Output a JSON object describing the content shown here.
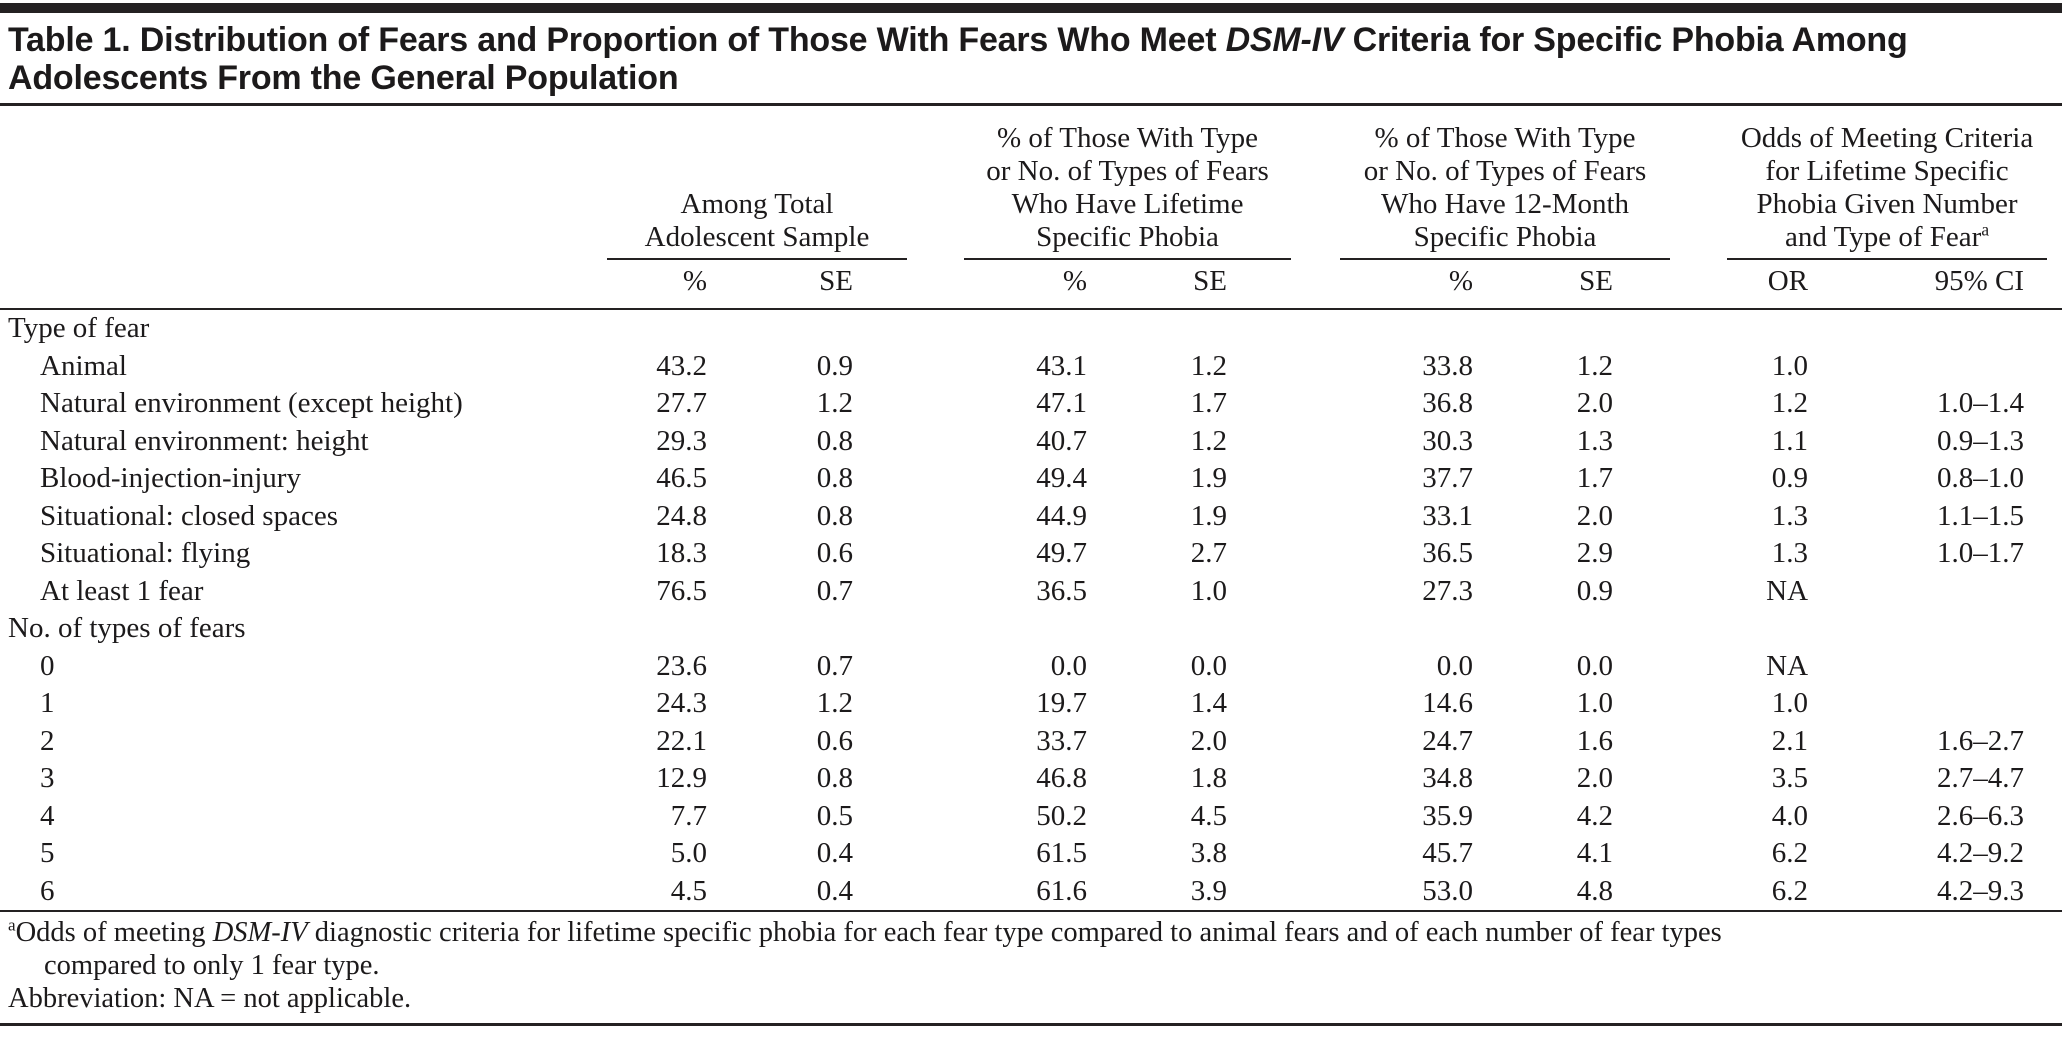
{
  "table": {
    "title": {
      "line1_parts": [
        {
          "text": "Table 1. Distribution of Fears and Proportion of Those With Fears Who Meet "
        },
        {
          "text": "DSM-IV",
          "italic": true
        },
        {
          "text": " Criteria for Specific Phobia Among"
        }
      ],
      "line2": "Adolescents From the General Population"
    },
    "column_groups": [
      {
        "lines": [
          "Among Total",
          "Adolescent Sample"
        ],
        "subcolumns": [
          "%",
          "SE"
        ]
      },
      {
        "lines": [
          "% of Those With Type",
          "or No. of Types of Fears",
          "Who Have Lifetime",
          "Specific Phobia"
        ],
        "subcolumns": [
          "%",
          "SE"
        ]
      },
      {
        "lines": [
          "% of Those With Type",
          "or No. of Types of Fears",
          "Who Have 12-Month",
          "Specific Phobia"
        ],
        "subcolumns": [
          "%",
          "SE"
        ]
      },
      {
        "lines": [
          "Odds of Meeting Criteria",
          "for Lifetime Specific",
          "Phobia Given Number",
          "and Type of Fear"
        ],
        "superscript": "a",
        "subcolumns": [
          "OR",
          "95% CI"
        ]
      }
    ],
    "rows": [
      {
        "label": "Type of fear",
        "section": true,
        "values": [
          "",
          "",
          "",
          "",
          "",
          "",
          "",
          ""
        ]
      },
      {
        "label": "Animal",
        "values": [
          "43.2",
          "0.9",
          "43.1",
          "1.2",
          "33.8",
          "1.2",
          "1.0",
          ""
        ]
      },
      {
        "label": "Natural environment (except height)",
        "values": [
          "27.7",
          "1.2",
          "47.1",
          "1.7",
          "36.8",
          "2.0",
          "1.2",
          "1.0–1.4"
        ]
      },
      {
        "label": "Natural environment: height",
        "values": [
          "29.3",
          "0.8",
          "40.7",
          "1.2",
          "30.3",
          "1.3",
          "1.1",
          "0.9–1.3"
        ]
      },
      {
        "label": "Blood-injection-injury",
        "values": [
          "46.5",
          "0.8",
          "49.4",
          "1.9",
          "37.7",
          "1.7",
          "0.9",
          "0.8–1.0"
        ]
      },
      {
        "label": "Situational: closed spaces",
        "values": [
          "24.8",
          "0.8",
          "44.9",
          "1.9",
          "33.1",
          "2.0",
          "1.3",
          "1.1–1.5"
        ]
      },
      {
        "label": "Situational: flying",
        "values": [
          "18.3",
          "0.6",
          "49.7",
          "2.7",
          "36.5",
          "2.9",
          "1.3",
          "1.0–1.7"
        ]
      },
      {
        "label": "At least 1 fear",
        "values": [
          "76.5",
          "0.7",
          "36.5",
          "1.0",
          "27.3",
          "0.9",
          "NA",
          ""
        ]
      },
      {
        "label": "No. of types of fears",
        "section": true,
        "values": [
          "",
          "",
          "",
          "",
          "",
          "",
          "",
          ""
        ]
      },
      {
        "label": "0",
        "values": [
          "23.6",
          "0.7",
          "0.0",
          "0.0",
          "0.0",
          "0.0",
          "NA",
          ""
        ]
      },
      {
        "label": "1",
        "values": [
          "24.3",
          "1.2",
          "19.7",
          "1.4",
          "14.6",
          "1.0",
          "1.0",
          ""
        ]
      },
      {
        "label": "2",
        "values": [
          "22.1",
          "0.6",
          "33.7",
          "2.0",
          "24.7",
          "1.6",
          "2.1",
          "1.6–2.7"
        ]
      },
      {
        "label": "3",
        "values": [
          "12.9",
          "0.8",
          "46.8",
          "1.8",
          "34.8",
          "2.0",
          "3.5",
          "2.7–4.7"
        ]
      },
      {
        "label": "4",
        "values": [
          "7.7",
          "0.5",
          "50.2",
          "4.5",
          "35.9",
          "4.2",
          "4.0",
          "2.6–6.3"
        ]
      },
      {
        "label": "5",
        "values": [
          "5.0",
          "0.4",
          "61.5",
          "3.8",
          "45.7",
          "4.1",
          "6.2",
          "4.2–9.2"
        ]
      },
      {
        "label": "6",
        "values": [
          "4.5",
          "0.4",
          "61.6",
          "3.9",
          "53.0",
          "4.8",
          "6.2",
          "4.2–9.3"
        ]
      }
    ],
    "footnotes": {
      "a_superscript": "a",
      "a_line1_parts": [
        {
          "text": "Odds of meeting "
        },
        {
          "text": "DSM-IV",
          "italic": true
        },
        {
          "text": " diagnostic criteria for lifetime specific phobia for each fear type compared to animal fears and of each number of fear types"
        }
      ],
      "a_line2": "compared to only 1 fear type.",
      "abbreviation": "Abbreviation: NA = not applicable."
    },
    "colors": {
      "bar": "#242122",
      "rule": "#242122",
      "text": "#1c1a1b",
      "background": "#ffffff"
    }
  }
}
